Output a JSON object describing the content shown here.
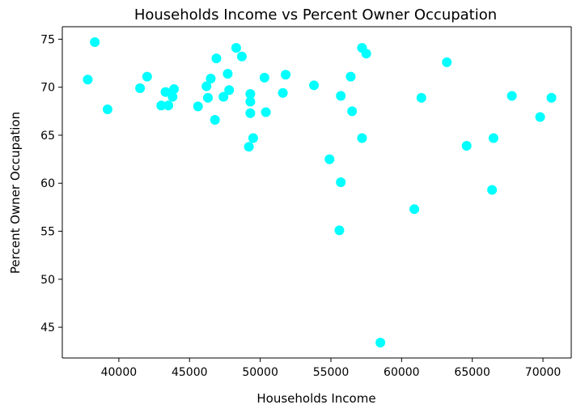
{
  "chart_data": {
    "type": "scatter",
    "title": "Households Income vs Percent Owner Occupation",
    "xlabel": "Households Income",
    "ylabel": "Percent Owner Occupation",
    "xlim": [
      36000,
      72000
    ],
    "ylim": [
      41.8,
      76.3
    ],
    "xticks": [
      40000,
      45000,
      50000,
      55000,
      60000,
      65000,
      70000
    ],
    "yticks": [
      45,
      50,
      55,
      60,
      65,
      70,
      75
    ],
    "grid": false,
    "legend": "none",
    "color": "#00ffff",
    "points": [
      [
        37800,
        70.8
      ],
      [
        38300,
        74.7
      ],
      [
        39200,
        67.7
      ],
      [
        41500,
        69.9
      ],
      [
        42000,
        71.1
      ],
      [
        43000,
        68.1
      ],
      [
        43300,
        69.5
      ],
      [
        43500,
        68.1
      ],
      [
        43800,
        69.0
      ],
      [
        43900,
        69.8
      ],
      [
        45600,
        68.0
      ],
      [
        46200,
        70.1
      ],
      [
        46300,
        68.9
      ],
      [
        46500,
        70.9
      ],
      [
        46800,
        66.6
      ],
      [
        46900,
        73.0
      ],
      [
        47400,
        69.0
      ],
      [
        47700,
        71.4
      ],
      [
        47800,
        69.7
      ],
      [
        48300,
        74.1
      ],
      [
        48700,
        73.2
      ],
      [
        49200,
        63.8
      ],
      [
        49300,
        69.3
      ],
      [
        49300,
        68.5
      ],
      [
        49300,
        67.3
      ],
      [
        49500,
        64.7
      ],
      [
        50300,
        71.0
      ],
      [
        50400,
        67.4
      ],
      [
        51600,
        69.4
      ],
      [
        51800,
        71.3
      ],
      [
        53800,
        70.2
      ],
      [
        54900,
        62.5
      ],
      [
        55600,
        55.1
      ],
      [
        55700,
        69.1
      ],
      [
        55700,
        60.1
      ],
      [
        56400,
        71.1
      ],
      [
        56500,
        67.5
      ],
      [
        57200,
        64.7
      ],
      [
        57200,
        74.1
      ],
      [
        57500,
        73.5
      ],
      [
        58500,
        43.4
      ],
      [
        60900,
        57.3
      ],
      [
        61400,
        68.9
      ],
      [
        63200,
        72.6
      ],
      [
        64600,
        63.9
      ],
      [
        66400,
        59.3
      ],
      [
        66500,
        64.7
      ],
      [
        67800,
        69.1
      ],
      [
        69800,
        66.9
      ],
      [
        70600,
        68.9
      ]
    ]
  }
}
